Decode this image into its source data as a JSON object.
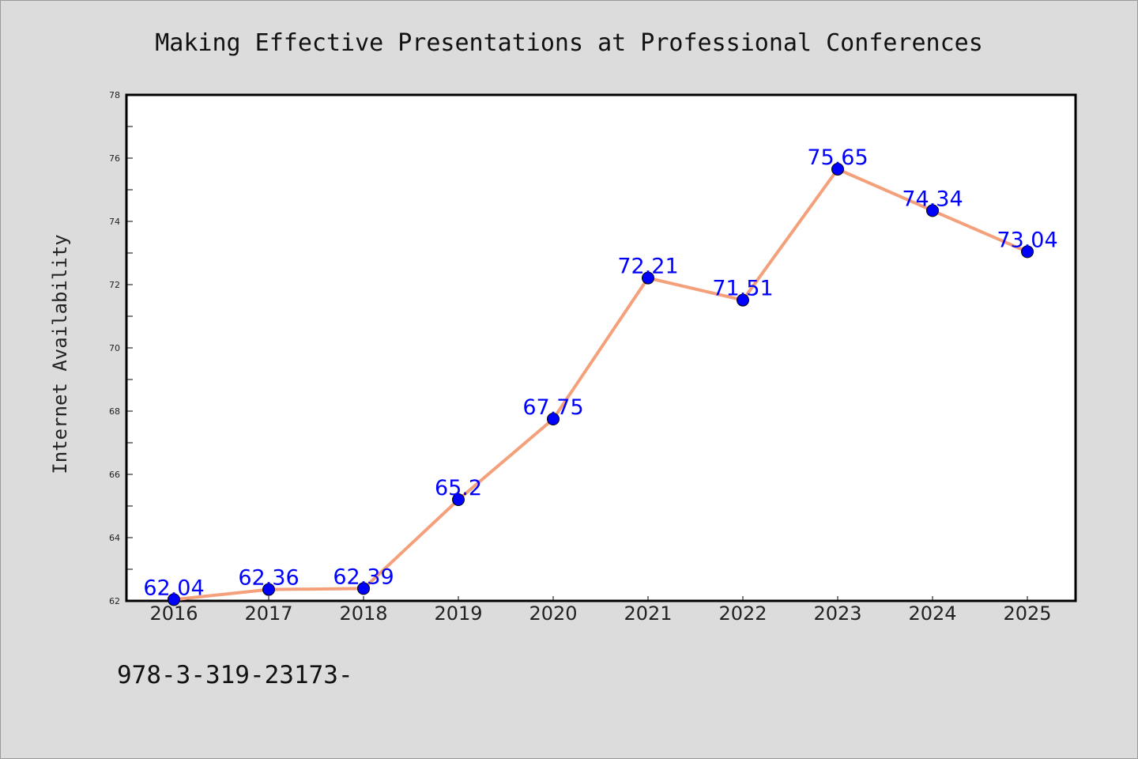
{
  "chart_data": {
    "type": "line",
    "title": "Making Effective Presentations at Professional Conferences",
    "ylabel": "Internet Availability",
    "xlabel": "",
    "categories": [
      "2016",
      "2017",
      "2018",
      "2019",
      "2020",
      "2021",
      "2022",
      "2023",
      "2024",
      "2025"
    ],
    "series": [
      {
        "values": [
          62.04,
          62.36,
          62.39,
          65.2,
          67.75,
          72.21,
          71.51,
          75.65,
          74.34,
          73.04
        ],
        "labels": [
          "62.04",
          "62.36",
          "62.39",
          "65.2",
          "67.75",
          "72.21",
          "71.51",
          "75.65",
          "74.34",
          "73.04"
        ],
        "line_color": "#f4a07a",
        "marker_color": "#0000ff"
      }
    ],
    "ylim": [
      62,
      78
    ],
    "yticks": [
      62,
      64,
      66,
      68,
      70,
      72,
      74,
      76,
      78
    ],
    "grid": false,
    "legend": "none"
  },
  "footer_text": "978-3-319-23173-"
}
